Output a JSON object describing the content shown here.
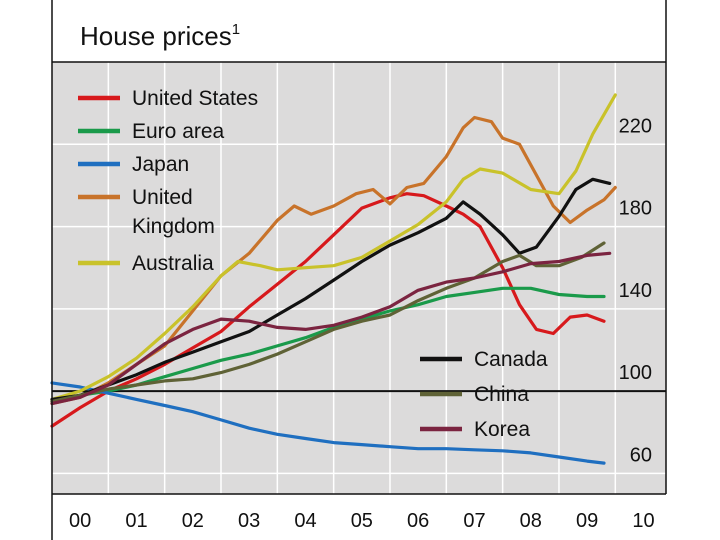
{
  "chart_data": {
    "type": "line",
    "title": "House prices",
    "title_footnote": "1",
    "xlabel": "",
    "ylabel": "",
    "xlim": [
      2000,
      2010.9
    ],
    "ylim": [
      50,
      260
    ],
    "x_ticks": [
      "00",
      "01",
      "02",
      "03",
      "04",
      "05",
      "06",
      "07",
      "08",
      "09",
      "10"
    ],
    "y_ticks": [
      60,
      100,
      140,
      180,
      220
    ],
    "baseline": 100,
    "grid": true,
    "legend_left": [
      "United States",
      "Euro area",
      "Japan",
      "United Kingdom",
      "Australia"
    ],
    "legend_right": [
      "Canada",
      "China",
      "Korea"
    ],
    "legend_right_placement": "bottom-right",
    "series": [
      {
        "name": "United States",
        "color": "#d7191c",
        "line_label": [
          "United States"
        ],
        "points": [
          [
            2000,
            83
          ],
          [
            2000.5,
            92
          ],
          [
            2001,
            100
          ],
          [
            2001.5,
            106
          ],
          [
            2002,
            113
          ],
          [
            2002.5,
            121
          ],
          [
            2003,
            129
          ],
          [
            2003.5,
            141
          ],
          [
            2004,
            152
          ],
          [
            2004.5,
            163
          ],
          [
            2005,
            176
          ],
          [
            2005.5,
            189
          ],
          [
            2006,
            194
          ],
          [
            2006.3,
            196
          ],
          [
            2006.6,
            195
          ],
          [
            2007,
            190
          ],
          [
            2007.3,
            186
          ],
          [
            2007.6,
            180
          ],
          [
            2008,
            160
          ],
          [
            2008.3,
            142
          ],
          [
            2008.6,
            130
          ],
          [
            2008.9,
            128
          ],
          [
            2009.2,
            136
          ],
          [
            2009.5,
            137
          ],
          [
            2009.8,
            134
          ]
        ]
      },
      {
        "name": "Euro area",
        "color": "#1a9a4a",
        "line_label": [
          "Euro area"
        ],
        "points": [
          [
            2000,
            95
          ],
          [
            2000.5,
            98
          ],
          [
            2001,
            100
          ],
          [
            2001.5,
            103
          ],
          [
            2002,
            107
          ],
          [
            2002.5,
            111
          ],
          [
            2003,
            115
          ],
          [
            2003.5,
            118
          ],
          [
            2004,
            122
          ],
          [
            2004.5,
            126
          ],
          [
            2005,
            131
          ],
          [
            2005.5,
            135
          ],
          [
            2006,
            139
          ],
          [
            2006.5,
            142
          ],
          [
            2007,
            146
          ],
          [
            2007.5,
            148
          ],
          [
            2008,
            150
          ],
          [
            2008.5,
            150
          ],
          [
            2009,
            147
          ],
          [
            2009.5,
            146
          ],
          [
            2009.8,
            146
          ]
        ]
      },
      {
        "name": "Japan",
        "color": "#1f6fc0",
        "line_label": [
          "Japan"
        ],
        "points": [
          [
            2000,
            104
          ],
          [
            2000.5,
            102
          ],
          [
            2001,
            99
          ],
          [
            2001.5,
            96
          ],
          [
            2002,
            93
          ],
          [
            2002.5,
            90
          ],
          [
            2003,
            86
          ],
          [
            2003.5,
            82
          ],
          [
            2004,
            79
          ],
          [
            2004.5,
            77
          ],
          [
            2005,
            75
          ],
          [
            2005.5,
            74
          ],
          [
            2006,
            73
          ],
          [
            2006.5,
            72
          ],
          [
            2007,
            72
          ],
          [
            2007.5,
            71.5
          ],
          [
            2008,
            71
          ],
          [
            2008.5,
            70
          ],
          [
            2009,
            68
          ],
          [
            2009.5,
            66
          ],
          [
            2009.8,
            65
          ]
        ]
      },
      {
        "name": "United Kingdom",
        "color": "#c8732a",
        "line_label": [
          "United",
          "Kingdom"
        ],
        "points": [
          [
            2000,
            94
          ],
          [
            2000.5,
            97
          ],
          [
            2001,
            104
          ],
          [
            2001.5,
            113
          ],
          [
            2002,
            122
          ],
          [
            2002.5,
            139
          ],
          [
            2003,
            156
          ],
          [
            2003.5,
            167
          ],
          [
            2004,
            183
          ],
          [
            2004.3,
            190
          ],
          [
            2004.6,
            186
          ],
          [
            2005,
            190
          ],
          [
            2005.4,
            196
          ],
          [
            2005.7,
            198
          ],
          [
            2006,
            191
          ],
          [
            2006.3,
            199
          ],
          [
            2006.6,
            201
          ],
          [
            2007,
            214
          ],
          [
            2007.3,
            228
          ],
          [
            2007.5,
            233
          ],
          [
            2007.8,
            231
          ],
          [
            2008,
            223
          ],
          [
            2008.3,
            220
          ],
          [
            2008.6,
            205
          ],
          [
            2008.9,
            190
          ],
          [
            2009.2,
            182
          ],
          [
            2009.5,
            188
          ],
          [
            2009.8,
            193
          ],
          [
            2010,
            199
          ]
        ]
      },
      {
        "name": "Australia",
        "color": "#c9c22a",
        "line_label": [
          "Australia"
        ],
        "points": [
          [
            2000,
            96
          ],
          [
            2000.5,
            100
          ],
          [
            2001,
            107
          ],
          [
            2001.5,
            116
          ],
          [
            2002,
            128
          ],
          [
            2002.5,
            141
          ],
          [
            2003,
            156
          ],
          [
            2003.3,
            163
          ],
          [
            2003.7,
            161
          ],
          [
            2004,
            159
          ],
          [
            2004.5,
            160
          ],
          [
            2005,
            161
          ],
          [
            2005.5,
            165
          ],
          [
            2006,
            173
          ],
          [
            2006.5,
            181
          ],
          [
            2007,
            192
          ],
          [
            2007.3,
            203
          ],
          [
            2007.6,
            208
          ],
          [
            2008,
            206
          ],
          [
            2008.5,
            198
          ],
          [
            2009,
            196
          ],
          [
            2009.3,
            207
          ],
          [
            2009.6,
            225
          ],
          [
            2010,
            244
          ]
        ]
      },
      {
        "name": "Canada",
        "color": "#111111",
        "line_label": [
          "Canada"
        ],
        "points": [
          [
            2000,
            96
          ],
          [
            2000.5,
            98
          ],
          [
            2001,
            103
          ],
          [
            2001.5,
            108
          ],
          [
            2002,
            114
          ],
          [
            2002.5,
            119
          ],
          [
            2003,
            124
          ],
          [
            2003.5,
            129
          ],
          [
            2004,
            137
          ],
          [
            2004.5,
            145
          ],
          [
            2005,
            154
          ],
          [
            2005.5,
            163
          ],
          [
            2006,
            171
          ],
          [
            2006.5,
            177
          ],
          [
            2007,
            184
          ],
          [
            2007.3,
            192
          ],
          [
            2007.6,
            186
          ],
          [
            2008,
            176
          ],
          [
            2008.3,
            167
          ],
          [
            2008.6,
            170
          ],
          [
            2009,
            185
          ],
          [
            2009.3,
            198
          ],
          [
            2009.6,
            203
          ],
          [
            2009.9,
            201
          ]
        ]
      },
      {
        "name": "China",
        "color": "#5f6236",
        "line_label": [
          "China"
        ],
        "points": [
          [
            2000,
            95
          ],
          [
            2000.5,
            98
          ],
          [
            2001,
            101
          ],
          [
            2001.5,
            103
          ],
          [
            2002,
            105
          ],
          [
            2002.5,
            106
          ],
          [
            2003,
            109
          ],
          [
            2003.5,
            113
          ],
          [
            2004,
            118
          ],
          [
            2004.5,
            124
          ],
          [
            2005,
            130
          ],
          [
            2005.5,
            134
          ],
          [
            2006,
            137
          ],
          [
            2006.5,
            144
          ],
          [
            2007,
            150
          ],
          [
            2007.5,
            155
          ],
          [
            2008,
            163
          ],
          [
            2008.3,
            166
          ],
          [
            2008.6,
            161
          ],
          [
            2009,
            161
          ],
          [
            2009.4,
            165
          ],
          [
            2009.8,
            172
          ]
        ]
      },
      {
        "name": "Korea",
        "color": "#7b2440",
        "line_label": [
          "Korea"
        ],
        "points": [
          [
            2000,
            94
          ],
          [
            2000.5,
            97
          ],
          [
            2001,
            103
          ],
          [
            2001.5,
            113
          ],
          [
            2002,
            123
          ],
          [
            2002.5,
            130
          ],
          [
            2003,
            135
          ],
          [
            2003.5,
            134
          ],
          [
            2004,
            131
          ],
          [
            2004.5,
            130
          ],
          [
            2005,
            132
          ],
          [
            2005.5,
            136
          ],
          [
            2006,
            141
          ],
          [
            2006.5,
            149
          ],
          [
            2007,
            153
          ],
          [
            2007.5,
            155
          ],
          [
            2008,
            158
          ],
          [
            2008.5,
            162
          ],
          [
            2009,
            163
          ],
          [
            2009.5,
            166
          ],
          [
            2009.9,
            167
          ]
        ]
      }
    ]
  }
}
